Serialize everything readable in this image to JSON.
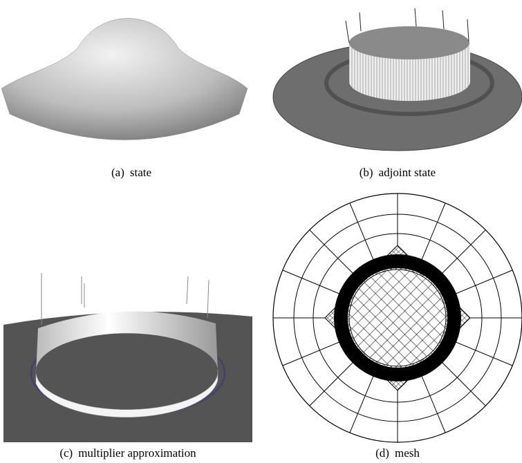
{
  "figures": [
    {
      "label": "(a)",
      "caption": "state"
    },
    {
      "label": "(b)",
      "caption": "adjoint state"
    },
    {
      "label": "(c)",
      "caption": "multiplier approximation"
    },
    {
      "label": "(d)",
      "caption": "mesh"
    }
  ]
}
